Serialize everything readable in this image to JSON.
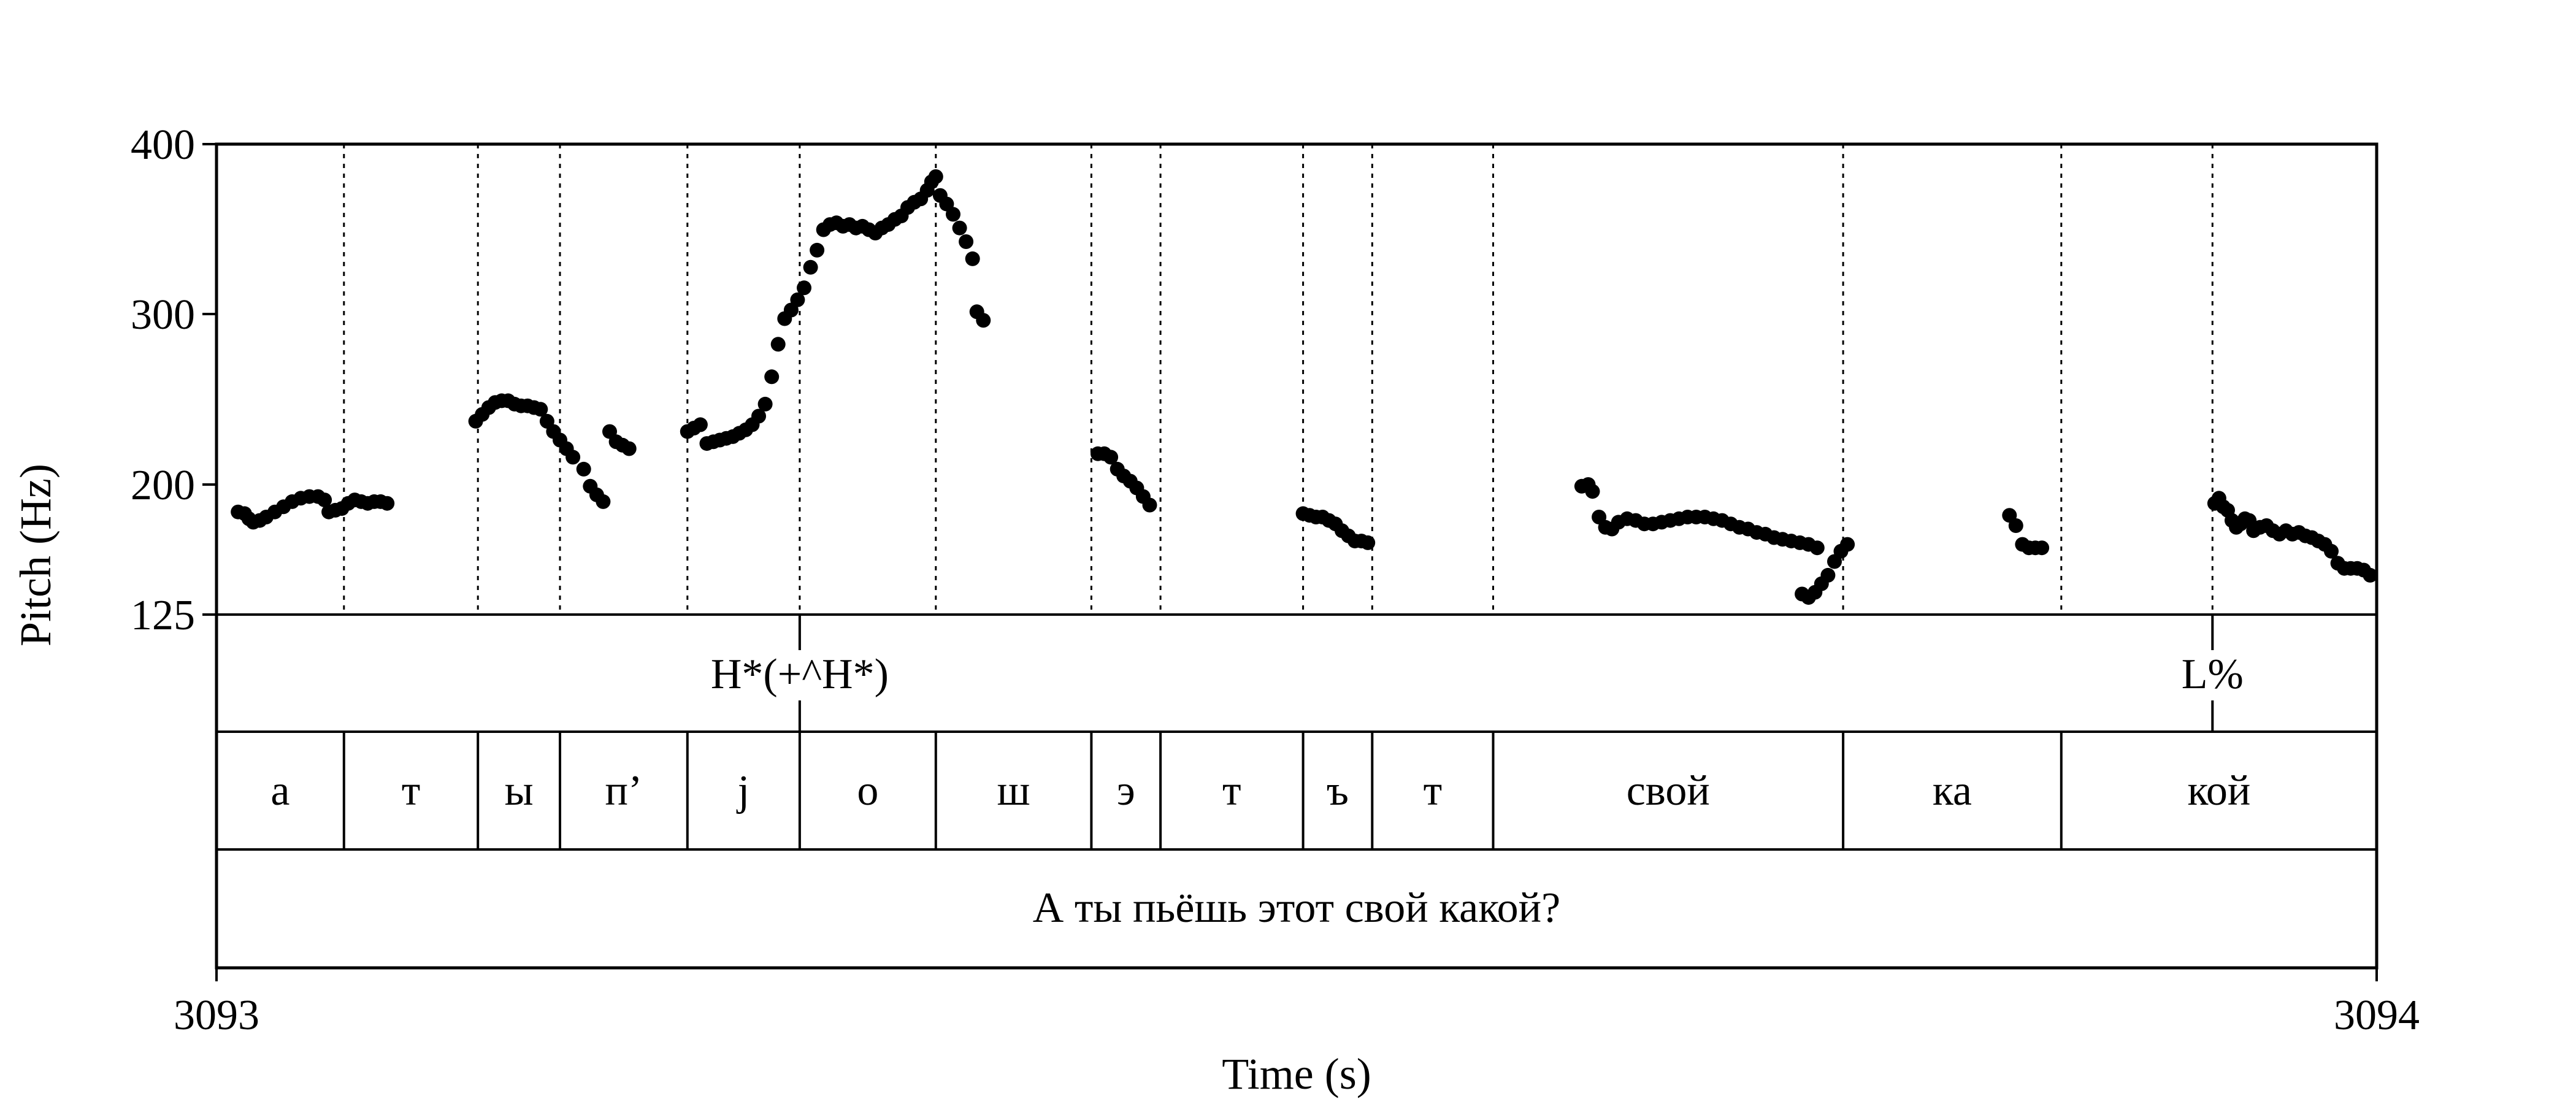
{
  "chart_data": {
    "type": "scatter",
    "title": "",
    "xlabel": "Time (s)",
    "ylabel": "Pitch (Hz)",
    "xlim": [
      3093,
      3094
    ],
    "ylim": [
      125,
      400
    ],
    "x_tick_labels": [
      "3093",
      "3094"
    ],
    "y_ticks": [
      400,
      300,
      200,
      125
    ],
    "y_tick_labels": [
      "400",
      "300",
      "200",
      "125"
    ],
    "boundaries": [
      3093.059,
      3093.121,
      3093.159,
      3093.218,
      3093.27,
      3093.333,
      3093.405,
      3093.437,
      3093.503,
      3093.535,
      3093.591,
      3093.753,
      3093.854,
      3093.924
    ],
    "tones": [
      {
        "t": 3093.27,
        "label": "H*(+^H*)"
      },
      {
        "t": 3093.924,
        "label": "L%"
      }
    ],
    "segments": [
      {
        "start": 3093.0,
        "end": 3093.059,
        "label": "а"
      },
      {
        "start": 3093.059,
        "end": 3093.121,
        "label": "т"
      },
      {
        "start": 3093.121,
        "end": 3093.159,
        "label": "ы"
      },
      {
        "start": 3093.159,
        "end": 3093.218,
        "label": "п’"
      },
      {
        "start": 3093.218,
        "end": 3093.27,
        "label": "j"
      },
      {
        "start": 3093.27,
        "end": 3093.333,
        "label": "о"
      },
      {
        "start": 3093.333,
        "end": 3093.405,
        "label": "ш"
      },
      {
        "start": 3093.405,
        "end": 3093.437,
        "label": "э"
      },
      {
        "start": 3093.437,
        "end": 3093.503,
        "label": "т"
      },
      {
        "start": 3093.503,
        "end": 3093.535,
        "label": "ъ"
      },
      {
        "start": 3093.535,
        "end": 3093.591,
        "label": "т"
      },
      {
        "start": 3093.591,
        "end": 3093.753,
        "label": "свой"
      },
      {
        "start": 3093.753,
        "end": 3093.854,
        "label": "ка"
      },
      {
        "start": 3093.854,
        "end": 3094.0,
        "label": "кой"
      }
    ],
    "sentence": "А ты пьёшь этот свой какой?",
    "pitch_runs": [
      [
        [
          3093.01,
          185
        ],
        [
          3093.013,
          184
        ],
        [
          3093.015,
          181
        ],
        [
          3093.017,
          179
        ],
        [
          3093.02,
          180
        ],
        [
          3093.023,
          182
        ],
        [
          3093.027,
          185
        ],
        [
          3093.031,
          188
        ],
        [
          3093.035,
          191
        ],
        [
          3093.039,
          193
        ],
        [
          3093.043,
          194
        ],
        [
          3093.047,
          194
        ],
        [
          3093.05,
          192
        ],
        [
          3093.052,
          185
        ],
        [
          3093.055,
          186
        ],
        [
          3093.058,
          187
        ],
        [
          3093.061,
          190
        ],
        [
          3093.064,
          192
        ],
        [
          3093.067,
          191
        ],
        [
          3093.07,
          190
        ],
        [
          3093.073,
          191
        ],
        [
          3093.076,
          191
        ],
        [
          3093.079,
          190
        ]
      ],
      [
        [
          3093.12,
          238
        ],
        [
          3093.123,
          242
        ],
        [
          3093.126,
          246
        ],
        [
          3093.129,
          249
        ],
        [
          3093.132,
          250
        ],
        [
          3093.135,
          250
        ],
        [
          3093.138,
          248
        ],
        [
          3093.141,
          247
        ],
        [
          3093.144,
          247
        ],
        [
          3093.147,
          246
        ],
        [
          3093.15,
          245
        ],
        [
          3093.153,
          238
        ],
        [
          3093.156,
          232
        ],
        [
          3093.159,
          227
        ],
        [
          3093.162,
          222
        ],
        [
          3093.165,
          217
        ]
      ],
      [
        [
          3093.17,
          210
        ],
        [
          3093.173,
          200
        ],
        [
          3093.176,
          195
        ],
        [
          3093.179,
          191
        ]
      ],
      [
        [
          3093.182,
          232
        ],
        [
          3093.185,
          226
        ],
        [
          3093.188,
          224
        ],
        [
          3093.191,
          222
        ]
      ],
      [
        [
          3093.218,
          232
        ],
        [
          3093.221,
          234
        ],
        [
          3093.224,
          236
        ],
        [
          3093.227,
          225
        ],
        [
          3093.23,
          226
        ],
        [
          3093.233,
          227
        ],
        [
          3093.236,
          228
        ],
        [
          3093.239,
          229
        ],
        [
          3093.242,
          231
        ],
        [
          3093.245,
          233
        ],
        [
          3093.248,
          236
        ],
        [
          3093.251,
          241
        ],
        [
          3093.254,
          248
        ],
        [
          3093.257,
          264
        ],
        [
          3093.26,
          283
        ],
        [
          3093.263,
          298
        ],
        [
          3093.266,
          303
        ],
        [
          3093.269,
          309
        ],
        [
          3093.272,
          316
        ],
        [
          3093.275,
          328
        ],
        [
          3093.278,
          338
        ],
        [
          3093.281,
          350
        ],
        [
          3093.284,
          353
        ],
        [
          3093.287,
          354
        ],
        [
          3093.29,
          352
        ],
        [
          3093.293,
          353
        ],
        [
          3093.296,
          351
        ],
        [
          3093.299,
          352
        ],
        [
          3093.302,
          350
        ],
        [
          3093.305,
          348
        ],
        [
          3093.308,
          351
        ],
        [
          3093.311,
          353
        ],
        [
          3093.314,
          356
        ],
        [
          3093.317,
          358
        ],
        [
          3093.32,
          363
        ],
        [
          3093.323,
          366
        ],
        [
          3093.326,
          368
        ],
        [
          3093.329,
          373
        ],
        [
          3093.331,
          378
        ],
        [
          3093.333,
          381
        ],
        [
          3093.335,
          370
        ],
        [
          3093.338,
          365
        ],
        [
          3093.341,
          359
        ],
        [
          3093.344,
          351
        ],
        [
          3093.347,
          343
        ],
        [
          3093.35,
          333
        ],
        [
          3093.352,
          302
        ],
        [
          3093.355,
          297
        ]
      ],
      [
        [
          3093.408,
          219
        ],
        [
          3093.411,
          219
        ],
        [
          3093.414,
          217
        ],
        [
          3093.417,
          210
        ],
        [
          3093.42,
          206
        ],
        [
          3093.423,
          203
        ],
        [
          3093.426,
          199
        ],
        [
          3093.429,
          194
        ],
        [
          3093.432,
          189
        ]
      ],
      [
        [
          3093.503,
          184
        ],
        [
          3093.506,
          183
        ],
        [
          3093.509,
          182
        ],
        [
          3093.512,
          182
        ],
        [
          3093.515,
          180
        ],
        [
          3093.518,
          178
        ],
        [
          3093.521,
          174
        ],
        [
          3093.524,
          171
        ],
        [
          3093.527,
          168
        ],
        [
          3093.53,
          168
        ],
        [
          3093.533,
          167
        ]
      ],
      [
        [
          3093.632,
          200
        ],
        [
          3093.635,
          201
        ],
        [
          3093.637,
          197
        ],
        [
          3093.64,
          182
        ],
        [
          3093.643,
          176
        ],
        [
          3093.646,
          175
        ],
        [
          3093.649,
          179
        ],
        [
          3093.653,
          181
        ],
        [
          3093.657,
          180
        ],
        [
          3093.661,
          178
        ],
        [
          3093.665,
          178
        ],
        [
          3093.669,
          179
        ],
        [
          3093.673,
          180
        ],
        [
          3093.677,
          181
        ],
        [
          3093.681,
          182
        ],
        [
          3093.685,
          182
        ],
        [
          3093.689,
          182
        ],
        [
          3093.693,
          181
        ],
        [
          3093.697,
          180
        ],
        [
          3093.701,
          178
        ],
        [
          3093.705,
          176
        ],
        [
          3093.709,
          175
        ],
        [
          3093.713,
          173
        ],
        [
          3093.717,
          172
        ],
        [
          3093.721,
          170
        ],
        [
          3093.725,
          169
        ],
        [
          3093.729,
          168
        ],
        [
          3093.733,
          167
        ],
        [
          3093.737,
          166
        ],
        [
          3093.741,
          164
        ]
      ],
      [
        [
          3093.734,
          137
        ],
        [
          3093.737,
          135
        ],
        [
          3093.74,
          138
        ],
        [
          3093.743,
          143
        ],
        [
          3093.746,
          148
        ],
        [
          3093.749,
          156
        ],
        [
          3093.752,
          162
        ],
        [
          3093.755,
          166
        ]
      ],
      [
        [
          3093.83,
          183
        ],
        [
          3093.833,
          177
        ],
        [
          3093.836,
          166
        ],
        [
          3093.839,
          164
        ],
        [
          3093.842,
          164
        ],
        [
          3093.845,
          164
        ]
      ],
      [
        [
          3093.925,
          190
        ],
        [
          3093.927,
          193
        ],
        [
          3093.929,
          188
        ],
        [
          3093.931,
          186
        ],
        [
          3093.933,
          180
        ],
        [
          3093.935,
          176
        ],
        [
          3093.937,
          178
        ],
        [
          3093.939,
          181
        ],
        [
          3093.941,
          180
        ],
        [
          3093.943,
          174
        ],
        [
          3093.946,
          176
        ],
        [
          3093.949,
          177
        ],
        [
          3093.952,
          174
        ],
        [
          3093.955,
          172
        ],
        [
          3093.958,
          174
        ],
        [
          3093.961,
          172
        ],
        [
          3093.964,
          173
        ],
        [
          3093.967,
          171
        ],
        [
          3093.97,
          170
        ],
        [
          3093.973,
          168
        ],
        [
          3093.976,
          166
        ],
        [
          3093.979,
          162
        ],
        [
          3093.982,
          155
        ],
        [
          3093.985,
          152
        ],
        [
          3093.988,
          152
        ],
        [
          3093.991,
          152
        ],
        [
          3093.994,
          151
        ],
        [
          3093.997,
          148
        ]
      ]
    ]
  }
}
